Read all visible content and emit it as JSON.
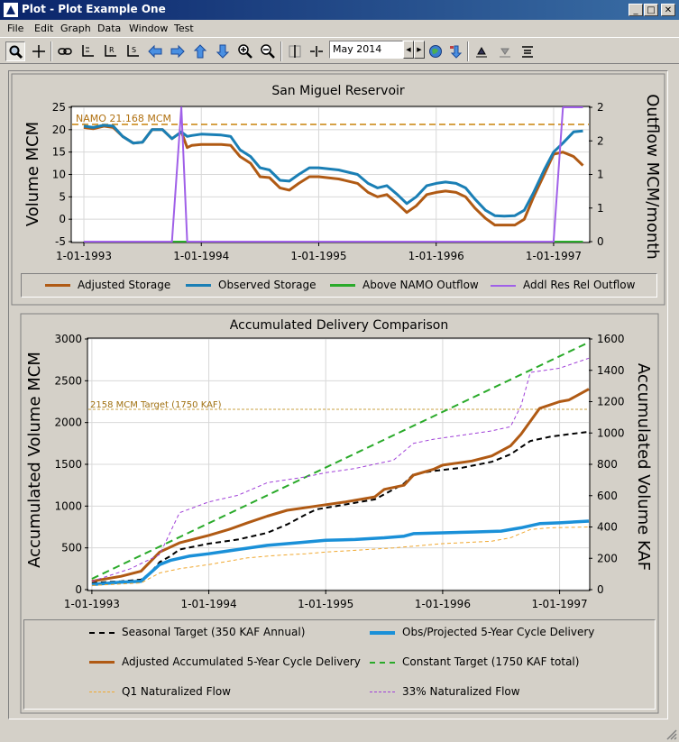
{
  "window": {
    "title": "Plot - Plot Example One",
    "minimize_glyph": "_",
    "maximize_glyph": "□",
    "close_glyph": "✕"
  },
  "menu": [
    "File",
    "Edit",
    "Graph",
    "Data",
    "Window",
    "Test"
  ],
  "toolbar": {
    "icons": [
      "zoom-icon",
      "crosshair-icon",
      "link-icon",
      "axis-icon",
      "axis-r-icon",
      "axis-s-icon",
      "arrow-left-icon",
      "arrow-right-icon",
      "arrow-up-icon",
      "arrow-down-icon",
      "zoom-in-icon",
      "zoom-out-icon",
      "split-vertical-icon",
      "split-horizontal-icon",
      "globe-icon",
      "import-icon",
      "stack-up-icon",
      "stack-down-icon",
      "stack-menu-icon"
    ],
    "date_value": "May 2014",
    "spin_prev": "◀",
    "spin_next": "▶"
  },
  "x_ticks": [
    "1-01-1993",
    "1-01-1994",
    "1-01-1995",
    "1-01-1996",
    "1-01-1997"
  ],
  "chart_data": [
    {
      "type": "line",
      "title": "San Miguel Reservoir",
      "ylabel": "Volume MCM",
      "y2label": "Outflow MCM/month",
      "ylim": [
        -5,
        25
      ],
      "y2lim": [
        0,
        2
      ],
      "yticks": [
        "25",
        "20",
        "15",
        "10",
        "5",
        "0",
        "-5"
      ],
      "y2ticks": [
        "2",
        "1",
        "0"
      ],
      "y2ticks_full": [
        "2",
        "2",
        "1",
        "1",
        "0",
        "0"
      ],
      "annotation": "NAMO 21.168 MCM",
      "reference_line": 21.168,
      "legend_placement": "bottom",
      "x_range": [
        1992.9,
        1997.3
      ],
      "series": [
        {
          "name": "Adjusted Storage",
          "color": "#b05a14",
          "axis": "left",
          "points": [
            [
              1993.0,
              20.5
            ],
            [
              1993.08,
              20.2
            ],
            [
              1993.17,
              20.8
            ],
            [
              1993.25,
              20.5
            ],
            [
              1993.33,
              18.5
            ],
            [
              1993.42,
              17.0
            ],
            [
              1993.5,
              17.2
            ],
            [
              1993.58,
              20.0
            ],
            [
              1993.67,
              20.0
            ],
            [
              1993.75,
              18.0
            ],
            [
              1993.83,
              19.5
            ],
            [
              1993.88,
              16.0
            ],
            [
              1993.92,
              16.5
            ],
            [
              1994.0,
              16.7
            ],
            [
              1994.17,
              16.7
            ],
            [
              1994.25,
              16.5
            ],
            [
              1994.33,
              14.0
            ],
            [
              1994.42,
              12.5
            ],
            [
              1994.5,
              9.5
            ],
            [
              1994.58,
              9.3
            ],
            [
              1994.67,
              7.0
            ],
            [
              1994.75,
              6.5
            ],
            [
              1994.83,
              8.0
            ],
            [
              1994.92,
              9.5
            ],
            [
              1995.0,
              9.5
            ],
            [
              1995.17,
              9.0
            ],
            [
              1995.25,
              8.5
            ],
            [
              1995.33,
              8.0
            ],
            [
              1995.42,
              6.0
            ],
            [
              1995.5,
              5.0
            ],
            [
              1995.58,
              5.5
            ],
            [
              1995.67,
              3.5
            ],
            [
              1995.75,
              1.5
            ],
            [
              1995.83,
              3.0
            ],
            [
              1995.92,
              5.5
            ],
            [
              1996.0,
              6.0
            ],
            [
              1996.08,
              6.3
            ],
            [
              1996.17,
              6.0
            ],
            [
              1996.25,
              5.0
            ],
            [
              1996.33,
              2.5
            ],
            [
              1996.42,
              0.2
            ],
            [
              1996.5,
              -1.3
            ],
            [
              1996.58,
              -1.3
            ],
            [
              1996.67,
              -1.3
            ],
            [
              1996.75,
              0.0
            ],
            [
              1996.83,
              5.0
            ],
            [
              1996.92,
              10.0
            ],
            [
              1997.0,
              14.5
            ],
            [
              1997.08,
              15.0
            ],
            [
              1997.17,
              14.0
            ],
            [
              1997.25,
              12.0
            ]
          ]
        },
        {
          "name": "Observed Storage",
          "color": "#1a7fb5",
          "axis": "left",
          "points": [
            [
              1993.0,
              20.8
            ],
            [
              1993.08,
              20.5
            ],
            [
              1993.17,
              21.0
            ],
            [
              1993.25,
              20.8
            ],
            [
              1993.33,
              18.5
            ],
            [
              1993.42,
              17.0
            ],
            [
              1993.5,
              17.2
            ],
            [
              1993.58,
              20.0
            ],
            [
              1993.67,
              20.0
            ],
            [
              1993.75,
              18.0
            ],
            [
              1993.83,
              19.5
            ],
            [
              1993.88,
              18.5
            ],
            [
              1993.92,
              18.7
            ],
            [
              1994.0,
              19.0
            ],
            [
              1994.17,
              18.8
            ],
            [
              1994.25,
              18.5
            ],
            [
              1994.33,
              15.5
            ],
            [
              1994.42,
              14.0
            ],
            [
              1994.5,
              11.5
            ],
            [
              1994.58,
              11.0
            ],
            [
              1994.67,
              8.7
            ],
            [
              1994.75,
              8.5
            ],
            [
              1994.83,
              10.0
            ],
            [
              1994.92,
              11.5
            ],
            [
              1995.0,
              11.5
            ],
            [
              1995.17,
              11.0
            ],
            [
              1995.25,
              10.5
            ],
            [
              1995.33,
              10.0
            ],
            [
              1995.42,
              8.0
            ],
            [
              1995.5,
              7.0
            ],
            [
              1995.58,
              7.5
            ],
            [
              1995.67,
              5.5
            ],
            [
              1995.75,
              3.5
            ],
            [
              1995.83,
              5.0
            ],
            [
              1995.92,
              7.5
            ],
            [
              1996.0,
              8.0
            ],
            [
              1996.08,
              8.3
            ],
            [
              1996.17,
              8.0
            ],
            [
              1996.25,
              7.0
            ],
            [
              1996.33,
              4.5
            ],
            [
              1996.42,
              2.0
            ],
            [
              1996.5,
              0.8
            ],
            [
              1996.58,
              0.7
            ],
            [
              1996.67,
              0.8
            ],
            [
              1996.75,
              2.0
            ],
            [
              1996.83,
              6.0
            ],
            [
              1996.92,
              11.0
            ],
            [
              1997.0,
              15.0
            ],
            [
              1997.08,
              17.0
            ],
            [
              1997.17,
              19.5
            ],
            [
              1997.25,
              19.7
            ]
          ]
        },
        {
          "name": "Above NAMO Outflow",
          "color": "#2aaa2a",
          "axis": "right",
          "points": [
            [
              1993.0,
              0
            ],
            [
              1997.25,
              0
            ]
          ]
        },
        {
          "name": "Addl Res Rel Outflow",
          "color": "#a060e8",
          "axis": "right",
          "points": [
            [
              1993.0,
              0
            ],
            [
              1993.75,
              0
            ],
            [
              1993.83,
              2.0
            ],
            [
              1993.88,
              0
            ],
            [
              1997.0,
              0
            ],
            [
              1997.08,
              2.0
            ],
            [
              1997.25,
              2.0
            ]
          ]
        }
      ]
    },
    {
      "type": "line",
      "title": "Accumulated Delivery Comparison",
      "ylabel": "Accumulated Volume MCM",
      "y2label": "Accumulated Volume KAF",
      "ylim": [
        0,
        3000
      ],
      "y2lim": [
        0,
        1600
      ],
      "yticks": [
        "3000",
        "2500",
        "2000",
        "1500",
        "1000",
        "500",
        "0"
      ],
      "y2ticks": [
        "1600",
        "1400",
        "1200",
        "1000",
        "800",
        "600",
        "400",
        "200",
        "0"
      ],
      "annotation": "2158 MCM Target (1750 KAF)",
      "reference_line": 2158,
      "legend_placement": "bottom",
      "x_range": [
        1992.97,
        1997.25
      ],
      "series": [
        {
          "name": "Seasonal Target (350 KAF Annual)",
          "color": "#000000",
          "dash": "6,4",
          "width": 2,
          "points": [
            [
              1993.0,
              80
            ],
            [
              1993.25,
              100
            ],
            [
              1993.42,
              120
            ],
            [
              1993.5,
              200
            ],
            [
              1993.58,
              330
            ],
            [
              1993.67,
              400
            ],
            [
              1993.75,
              480
            ],
            [
              1994.0,
              550
            ],
            [
              1994.25,
              600
            ],
            [
              1994.5,
              680
            ],
            [
              1994.67,
              780
            ],
            [
              1994.83,
              900
            ],
            [
              1994.92,
              960
            ],
            [
              1995.17,
              1020
            ],
            [
              1995.42,
              1080
            ],
            [
              1995.58,
              1200
            ],
            [
              1995.67,
              1270
            ],
            [
              1995.75,
              1380
            ],
            [
              1995.92,
              1420
            ],
            [
              1996.17,
              1460
            ],
            [
              1996.42,
              1530
            ],
            [
              1996.58,
              1620
            ],
            [
              1996.75,
              1780
            ],
            [
              1996.92,
              1830
            ],
            [
              1997.08,
              1860
            ],
            [
              1997.25,
              1890
            ]
          ]
        },
        {
          "name": "Obs/Projected 5-Year Cycle Delivery",
          "color": "#1a90d8",
          "width": 3.5,
          "points": [
            [
              1993.0,
              60
            ],
            [
              1993.25,
              90
            ],
            [
              1993.42,
              100
            ],
            [
              1993.58,
              300
            ],
            [
              1993.67,
              350
            ],
            [
              1993.83,
              400
            ],
            [
              1994.0,
              430
            ],
            [
              1994.25,
              480
            ],
            [
              1994.5,
              530
            ],
            [
              1994.75,
              560
            ],
            [
              1995.0,
              590
            ],
            [
              1995.25,
              600
            ],
            [
              1995.5,
              620
            ],
            [
              1995.67,
              640
            ],
            [
              1995.75,
              670
            ],
            [
              1996.0,
              680
            ],
            [
              1996.25,
              690
            ],
            [
              1996.5,
              700
            ],
            [
              1996.67,
              740
            ],
            [
              1996.83,
              790
            ],
            [
              1997.0,
              800
            ],
            [
              1997.25,
              820
            ]
          ]
        },
        {
          "name": "Adjusted Accumulated 5-Year Cycle Delivery",
          "color": "#b05a14",
          "width": 3,
          "points": [
            [
              1993.0,
              100
            ],
            [
              1993.25,
              160
            ],
            [
              1993.42,
              220
            ],
            [
              1993.58,
              450
            ],
            [
              1993.75,
              560
            ],
            [
              1994.0,
              650
            ],
            [
              1994.17,
              720
            ],
            [
              1994.33,
              800
            ],
            [
              1994.5,
              880
            ],
            [
              1994.67,
              950
            ],
            [
              1994.92,
              1000
            ],
            [
              1995.17,
              1050
            ],
            [
              1995.42,
              1110
            ],
            [
              1995.5,
              1200
            ],
            [
              1995.67,
              1250
            ],
            [
              1995.75,
              1370
            ],
            [
              1995.92,
              1440
            ],
            [
              1996.0,
              1490
            ],
            [
              1996.25,
              1540
            ],
            [
              1996.42,
              1600
            ],
            [
              1996.58,
              1720
            ],
            [
              1996.67,
              1860
            ],
            [
              1996.83,
              2170
            ],
            [
              1997.0,
              2250
            ],
            [
              1997.08,
              2270
            ],
            [
              1997.25,
              2400
            ]
          ]
        },
        {
          "name": "Constant Target (1750 KAF total)",
          "color": "#2aaa2a",
          "dash": "8,5",
          "width": 2,
          "points": [
            [
              1993.0,
              130
            ],
            [
              1997.25,
              2960
            ]
          ]
        },
        {
          "name": "Q1 Naturalized Flow",
          "color": "#f0a830",
          "dash": "4,3",
          "width": 1,
          "points": [
            [
              1993.0,
              50
            ],
            [
              1993.42,
              80
            ],
            [
              1993.58,
              200
            ],
            [
              1993.75,
              250
            ],
            [
              1994.0,
              300
            ],
            [
              1994.33,
              380
            ],
            [
              1994.58,
              410
            ],
            [
              1994.83,
              430
            ],
            [
              1995.0,
              450
            ],
            [
              1995.25,
              470
            ],
            [
              1995.58,
              500
            ],
            [
              1995.83,
              530
            ],
            [
              1996.0,
              550
            ],
            [
              1996.42,
              580
            ],
            [
              1996.58,
              620
            ],
            [
              1996.75,
              720
            ],
            [
              1996.92,
              740
            ],
            [
              1997.25,
              750
            ]
          ]
        },
        {
          "name": "33% Naturalized Flow",
          "color": "#a040d8",
          "dash": "4,3",
          "width": 1,
          "points": [
            [
              1993.0,
              100
            ],
            [
              1993.33,
              250
            ],
            [
              1993.58,
              420
            ],
            [
              1993.75,
              920
            ],
            [
              1994.0,
              1050
            ],
            [
              1994.25,
              1130
            ],
            [
              1994.5,
              1280
            ],
            [
              1994.83,
              1350
            ],
            [
              1995.0,
              1400
            ],
            [
              1995.25,
              1450
            ],
            [
              1995.58,
              1550
            ],
            [
              1995.75,
              1750
            ],
            [
              1995.92,
              1800
            ],
            [
              1996.17,
              1850
            ],
            [
              1996.42,
              1900
            ],
            [
              1996.58,
              1950
            ],
            [
              1996.67,
              2200
            ],
            [
              1996.75,
              2600
            ],
            [
              1997.0,
              2650
            ],
            [
              1997.25,
              2770
            ]
          ]
        }
      ]
    }
  ],
  "colors": {
    "titlebar": "#0a246a",
    "background": "#d4d0c8",
    "namo_line": "#c8820a"
  }
}
